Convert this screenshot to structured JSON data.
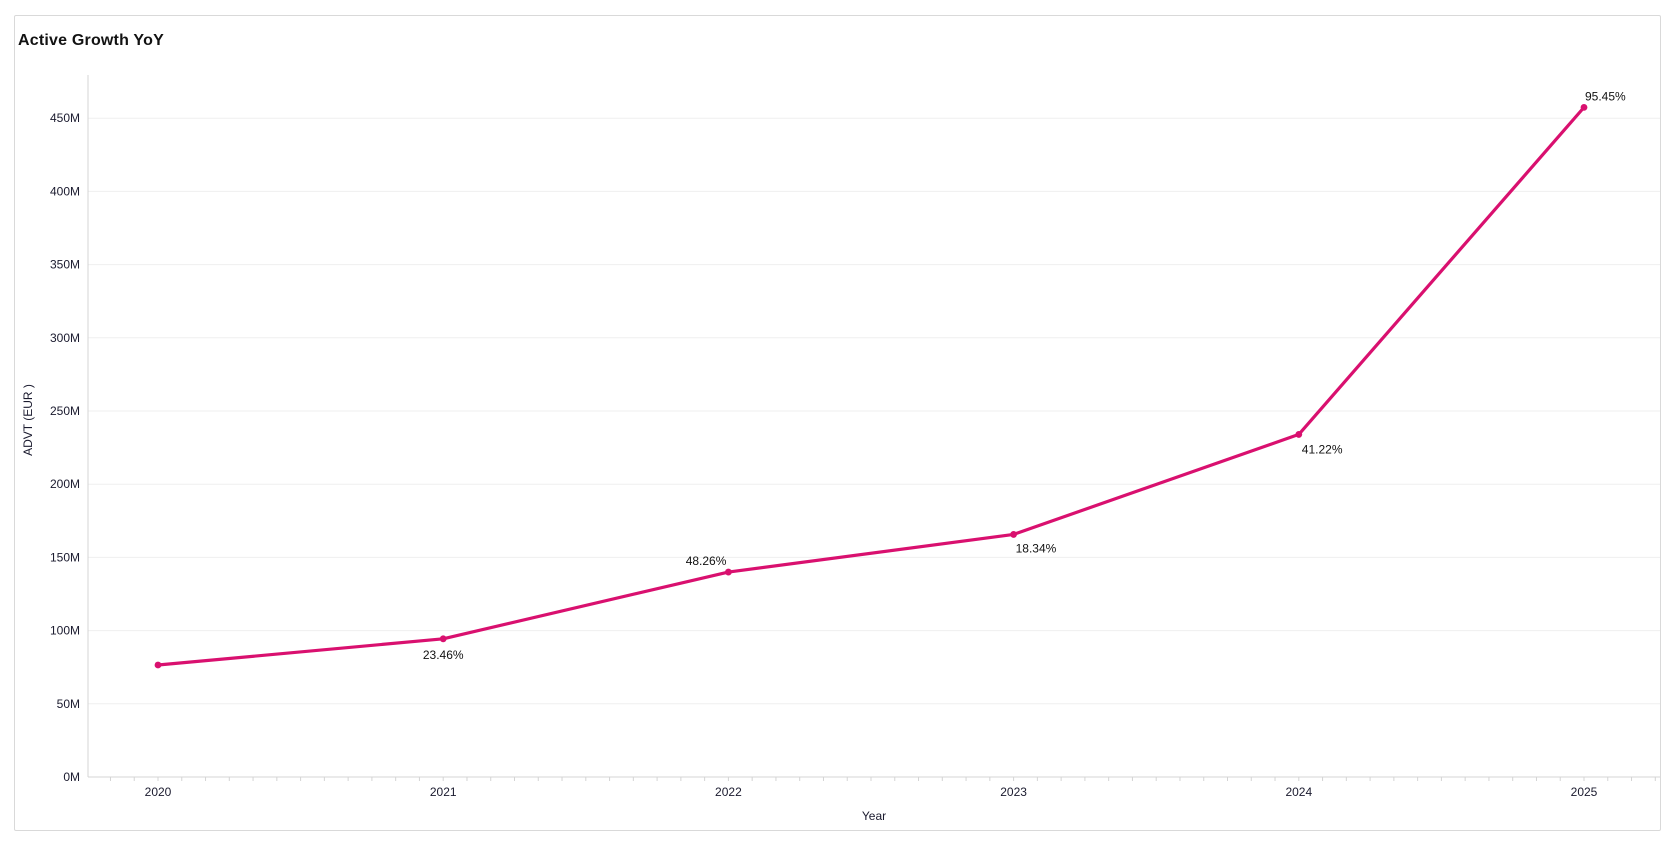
{
  "chart": {
    "title": "Active Growth YoY"
  },
  "chart_data": {
    "type": "line",
    "title": "Active Growth YoY",
    "xlabel": "Year",
    "ylabel": "ADVT (EUR )",
    "categories": [
      "2020",
      "2021",
      "2022",
      "2023",
      "2024",
      "2025"
    ],
    "series": [
      {
        "name": "ADVT (EUR)",
        "values": [
          76.5,
          94.4,
          140.0,
          165.7,
          234.0,
          457.4
        ],
        "unit": "M"
      }
    ],
    "point_labels": [
      "",
      "23.46%",
      "48.26%",
      "18.34%",
      "41.22%",
      "95.45%"
    ],
    "ytick_labels": [
      "0M",
      "50M",
      "100M",
      "150M",
      "200M",
      "250M",
      "300M",
      "350M",
      "400M",
      "450M"
    ],
    "ytick_values": [
      0,
      50,
      100,
      150,
      200,
      250,
      300,
      350,
      400,
      450
    ],
    "ylim": [
      0,
      470
    ],
    "grid": true,
    "legend": "none",
    "line_color": "#d9106f",
    "marker": "circle"
  }
}
